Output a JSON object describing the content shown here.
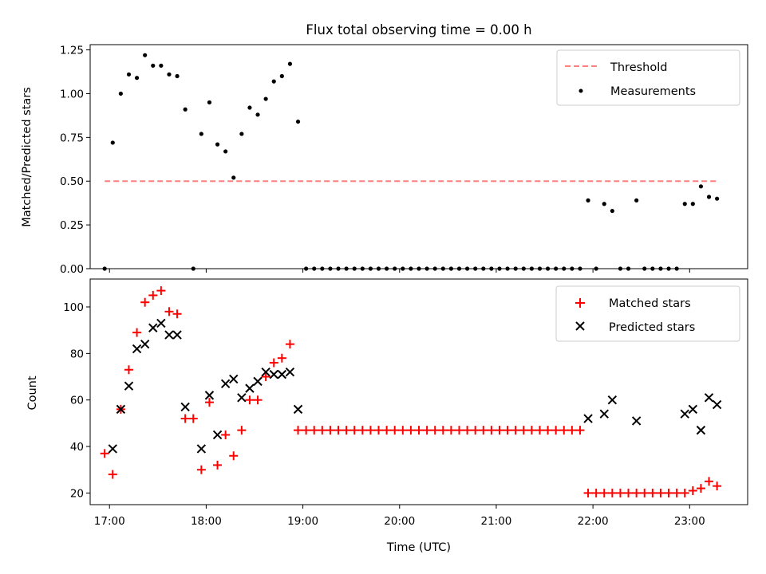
{
  "chart_data": [
    {
      "type": "scatter",
      "title": "Flux total observing time = 0.00 h",
      "xlabel": "",
      "ylabel": "Matched/Predicted stars",
      "xlim": [
        "16:48",
        "23:36"
      ],
      "ylim": [
        0,
        1.28
      ],
      "yticks": [
        0,
        0.25,
        0.5,
        0.75,
        1.0,
        1.25
      ],
      "ytick_labels": [
        "0.00",
        "0.25",
        "0.50",
        "0.75",
        "1.00",
        "1.25"
      ],
      "xticks": [
        "17:00",
        "18:00",
        "19:00",
        "20:00",
        "21:00",
        "22:00",
        "23:00"
      ],
      "legend_position": "top-right",
      "threshold": {
        "name": "Threshold",
        "value": 0.5,
        "x_range": [
          "16:57",
          "23:17"
        ],
        "color": "#ff7f7f",
        "style": "dashed"
      },
      "series": [
        {
          "name": "Measurements",
          "color": "#000000",
          "marker": "dot",
          "points": [
            [
              "16:57",
              0.0
            ],
            [
              "17:02",
              0.72
            ],
            [
              "17:07",
              1.0
            ],
            [
              "17:12",
              1.11
            ],
            [
              "17:17",
              1.09
            ],
            [
              "17:22",
              1.22
            ],
            [
              "17:27",
              1.16
            ],
            [
              "17:32",
              1.16
            ],
            [
              "17:37",
              1.11
            ],
            [
              "17:42",
              1.1
            ],
            [
              "17:47",
              0.91
            ],
            [
              "17:52",
              0.0
            ],
            [
              "17:57",
              0.77
            ],
            [
              "18:02",
              0.95
            ],
            [
              "18:07",
              0.71
            ],
            [
              "18:12",
              0.67
            ],
            [
              "18:17",
              0.52
            ],
            [
              "18:22",
              0.77
            ],
            [
              "18:27",
              0.92
            ],
            [
              "18:32",
              0.88
            ],
            [
              "18:37",
              0.97
            ],
            [
              "18:42",
              1.07
            ],
            [
              "18:47",
              1.1
            ],
            [
              "18:52",
              1.17
            ],
            [
              "18:57",
              0.84
            ],
            [
              "19:02",
              0.0
            ],
            [
              "19:07",
              0.0
            ],
            [
              "19:12",
              0.0
            ],
            [
              "19:17",
              0.0
            ],
            [
              "19:22",
              0.0
            ],
            [
              "19:27",
              0.0
            ],
            [
              "19:32",
              0.0
            ],
            [
              "19:37",
              0.0
            ],
            [
              "19:42",
              0.0
            ],
            [
              "19:47",
              0.0
            ],
            [
              "19:52",
              0.0
            ],
            [
              "19:57",
              0.0
            ],
            [
              "20:02",
              0.0
            ],
            [
              "20:07",
              0.0
            ],
            [
              "20:12",
              0.0
            ],
            [
              "20:17",
              0.0
            ],
            [
              "20:22",
              0.0
            ],
            [
              "20:27",
              0.0
            ],
            [
              "20:32",
              0.0
            ],
            [
              "20:37",
              0.0
            ],
            [
              "20:42",
              0.0
            ],
            [
              "20:47",
              0.0
            ],
            [
              "20:52",
              0.0
            ],
            [
              "20:57",
              0.0
            ],
            [
              "21:02",
              0.0
            ],
            [
              "21:07",
              0.0
            ],
            [
              "21:12",
              0.0
            ],
            [
              "21:17",
              0.0
            ],
            [
              "21:22",
              0.0
            ],
            [
              "21:27",
              0.0
            ],
            [
              "21:32",
              0.0
            ],
            [
              "21:37",
              0.0
            ],
            [
              "21:42",
              0.0
            ],
            [
              "21:47",
              0.0
            ],
            [
              "21:52",
              0.0
            ],
            [
              "21:57",
              0.39
            ],
            [
              "22:02",
              0.0
            ],
            [
              "22:07",
              0.37
            ],
            [
              "22:12",
              0.33
            ],
            [
              "22:17",
              0.0
            ],
            [
              "22:22",
              0.0
            ],
            [
              "22:27",
              0.39
            ],
            [
              "22:32",
              0.0
            ],
            [
              "22:37",
              0.0
            ],
            [
              "22:42",
              0.0
            ],
            [
              "22:47",
              0.0
            ],
            [
              "22:52",
              0.0
            ],
            [
              "22:57",
              0.37
            ],
            [
              "23:02",
              0.37
            ],
            [
              "23:07",
              0.47
            ],
            [
              "23:12",
              0.41
            ],
            [
              "23:17",
              0.4
            ]
          ]
        }
      ]
    },
    {
      "type": "scatter",
      "title": "",
      "xlabel": "Time (UTC)",
      "ylabel": "Count",
      "xlim": [
        "16:48",
        "23:36"
      ],
      "ylim": [
        15,
        112
      ],
      "yticks": [
        20,
        40,
        60,
        80,
        100
      ],
      "ytick_labels": [
        "20",
        "40",
        "60",
        "80",
        "100"
      ],
      "xticks": [
        "17:00",
        "18:00",
        "19:00",
        "20:00",
        "21:00",
        "22:00",
        "23:00"
      ],
      "legend_position": "top-right",
      "series": [
        {
          "name": "Matched stars",
          "color": "#ff0000",
          "marker": "plus",
          "points": [
            [
              "16:57",
              37
            ],
            [
              "17:02",
              28
            ],
            [
              "17:07",
              56
            ],
            [
              "17:12",
              73
            ],
            [
              "17:17",
              89
            ],
            [
              "17:22",
              102
            ],
            [
              "17:27",
              105
            ],
            [
              "17:32",
              107
            ],
            [
              "17:37",
              98
            ],
            [
              "17:42",
              97
            ],
            [
              "17:47",
              52
            ],
            [
              "17:52",
              52
            ],
            [
              "17:57",
              30
            ],
            [
              "18:02",
              59
            ],
            [
              "18:07",
              32
            ],
            [
              "18:12",
              45
            ],
            [
              "18:17",
              36
            ],
            [
              "18:22",
              47
            ],
            [
              "18:27",
              60
            ],
            [
              "18:32",
              60
            ],
            [
              "18:37",
              70
            ],
            [
              "18:42",
              76
            ],
            [
              "18:47",
              78
            ],
            [
              "18:52",
              84
            ],
            [
              "18:57",
              47
            ],
            [
              "19:02",
              47
            ],
            [
              "19:07",
              47
            ],
            [
              "19:12",
              47
            ],
            [
              "19:17",
              47
            ],
            [
              "19:22",
              47
            ],
            [
              "19:27",
              47
            ],
            [
              "19:32",
              47
            ],
            [
              "19:37",
              47
            ],
            [
              "19:42",
              47
            ],
            [
              "19:47",
              47
            ],
            [
              "19:52",
              47
            ],
            [
              "19:57",
              47
            ],
            [
              "20:02",
              47
            ],
            [
              "20:07",
              47
            ],
            [
              "20:12",
              47
            ],
            [
              "20:17",
              47
            ],
            [
              "20:22",
              47
            ],
            [
              "20:27",
              47
            ],
            [
              "20:32",
              47
            ],
            [
              "20:37",
              47
            ],
            [
              "20:42",
              47
            ],
            [
              "20:47",
              47
            ],
            [
              "20:52",
              47
            ],
            [
              "20:57",
              47
            ],
            [
              "21:02",
              47
            ],
            [
              "21:07",
              47
            ],
            [
              "21:12",
              47
            ],
            [
              "21:17",
              47
            ],
            [
              "21:22",
              47
            ],
            [
              "21:27",
              47
            ],
            [
              "21:32",
              47
            ],
            [
              "21:37",
              47
            ],
            [
              "21:42",
              47
            ],
            [
              "21:47",
              47
            ],
            [
              "21:52",
              47
            ],
            [
              "21:57",
              20
            ],
            [
              "22:02",
              20
            ],
            [
              "22:07",
              20
            ],
            [
              "22:12",
              20
            ],
            [
              "22:17",
              20
            ],
            [
              "22:22",
              20
            ],
            [
              "22:27",
              20
            ],
            [
              "22:32",
              20
            ],
            [
              "22:37",
              20
            ],
            [
              "22:42",
              20
            ],
            [
              "22:47",
              20
            ],
            [
              "22:52",
              20
            ],
            [
              "22:57",
              20
            ],
            [
              "23:02",
              21
            ],
            [
              "23:07",
              22
            ],
            [
              "23:12",
              25
            ],
            [
              "23:17",
              23
            ]
          ]
        },
        {
          "name": "Predicted stars",
          "color": "#000000",
          "marker": "x",
          "points": [
            [
              "17:02",
              39
            ],
            [
              "17:07",
              56
            ],
            [
              "17:12",
              66
            ],
            [
              "17:17",
              82
            ],
            [
              "17:22",
              84
            ],
            [
              "17:27",
              91
            ],
            [
              "17:32",
              93
            ],
            [
              "17:37",
              88
            ],
            [
              "17:42",
              88
            ],
            [
              "17:47",
              57
            ],
            [
              "17:57",
              39
            ],
            [
              "18:02",
              62
            ],
            [
              "18:07",
              45
            ],
            [
              "18:12",
              67
            ],
            [
              "18:17",
              69
            ],
            [
              "18:22",
              61
            ],
            [
              "18:27",
              65
            ],
            [
              "18:32",
              68
            ],
            [
              "18:37",
              72
            ],
            [
              "18:42",
              71
            ],
            [
              "18:47",
              71
            ],
            [
              "18:52",
              72
            ],
            [
              "18:57",
              56
            ],
            [
              "21:57",
              52
            ],
            [
              "22:07",
              54
            ],
            [
              "22:12",
              60
            ],
            [
              "22:27",
              51
            ],
            [
              "22:57",
              54
            ],
            [
              "23:02",
              56
            ],
            [
              "23:07",
              47
            ],
            [
              "23:12",
              61
            ],
            [
              "23:17",
              58
            ]
          ]
        }
      ]
    }
  ]
}
